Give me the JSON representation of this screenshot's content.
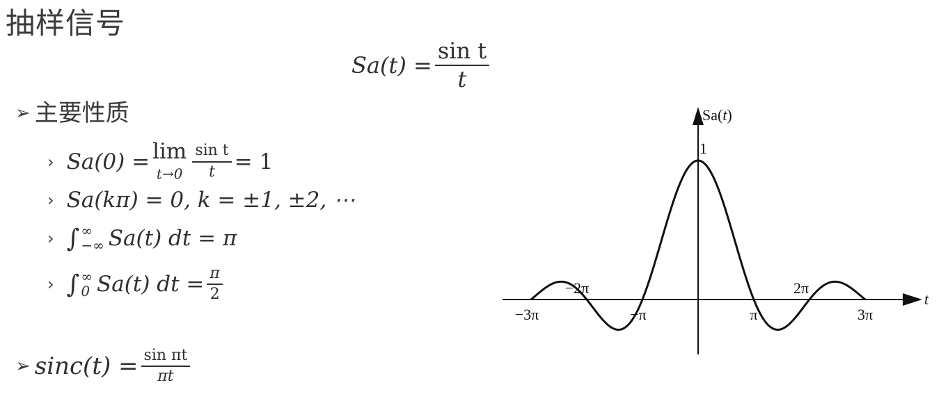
{
  "slide": {
    "title": "抽样信号"
  },
  "formula_sa": {
    "lhs": "Sa(t) =",
    "num": "sin t",
    "den": "t"
  },
  "properties": {
    "heading": "主要性质",
    "p1": {
      "lhs": "Sa(0) =",
      "lim": "lim",
      "lim_sub": "t→0",
      "num": "sin t",
      "den": "t",
      "rhs": "=  1"
    },
    "p2": {
      "text": "Sa(kπ) = 0, k = ±1, ±2, ⋯"
    },
    "p3": {
      "int": "∫",
      "upper": "∞",
      "lower": "−∞",
      "expr": "Sa(t) dt = π"
    },
    "p4": {
      "int": "∫",
      "upper": "∞",
      "lower": "0",
      "expr": "Sa(t) dt =",
      "num": "π",
      "den": "2"
    }
  },
  "sinc": {
    "lhs": "sinc(t) =",
    "num": "sin πt",
    "den": "πt"
  },
  "chart_data": {
    "type": "line",
    "function": "sin(t)/t",
    "ylabel": "Sa(t)",
    "xlabel": "t",
    "peak_label": "1",
    "xlim_pi": [
      -3,
      3
    ],
    "ylim": [
      -0.22,
      1
    ],
    "tick_labels": [
      "−3π",
      "−2π",
      "−π",
      "π",
      "2π",
      "3π"
    ],
    "tick_values_pi": [
      -3,
      -2,
      -1,
      1,
      2,
      3
    ],
    "curve_color": "#111111"
  }
}
